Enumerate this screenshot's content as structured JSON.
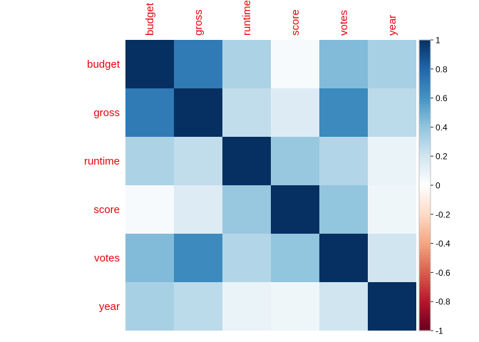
{
  "chart_data": {
    "type": "heatmap",
    "title": "",
    "rows": [
      "budget",
      "gross",
      "runtime",
      "score",
      "votes",
      "year"
    ],
    "columns": [
      "budget",
      "gross",
      "runtime",
      "score",
      "votes",
      "year"
    ],
    "values": [
      [
        1.0,
        0.71,
        0.32,
        0.04,
        0.44,
        0.33
      ],
      [
        0.71,
        1.0,
        0.25,
        0.15,
        0.64,
        0.27
      ],
      [
        0.32,
        0.25,
        1.0,
        0.38,
        0.3,
        0.09
      ],
      [
        0.04,
        0.15,
        0.38,
        1.0,
        0.4,
        0.07
      ],
      [
        0.44,
        0.64,
        0.3,
        0.4,
        1.0,
        0.2
      ],
      [
        0.33,
        0.27,
        0.09,
        0.07,
        0.2,
        1.0
      ]
    ],
    "color_range": [
      -1,
      1
    ],
    "colorbar": {
      "ticks": [
        "1",
        "0.8",
        "0.6",
        "0.4",
        "0.2",
        "0",
        "-0.2",
        "-0.4",
        "-0.6",
        "-0.8",
        "-1"
      ],
      "placement": "right"
    },
    "label_color": "#e8000b",
    "grid": false
  }
}
